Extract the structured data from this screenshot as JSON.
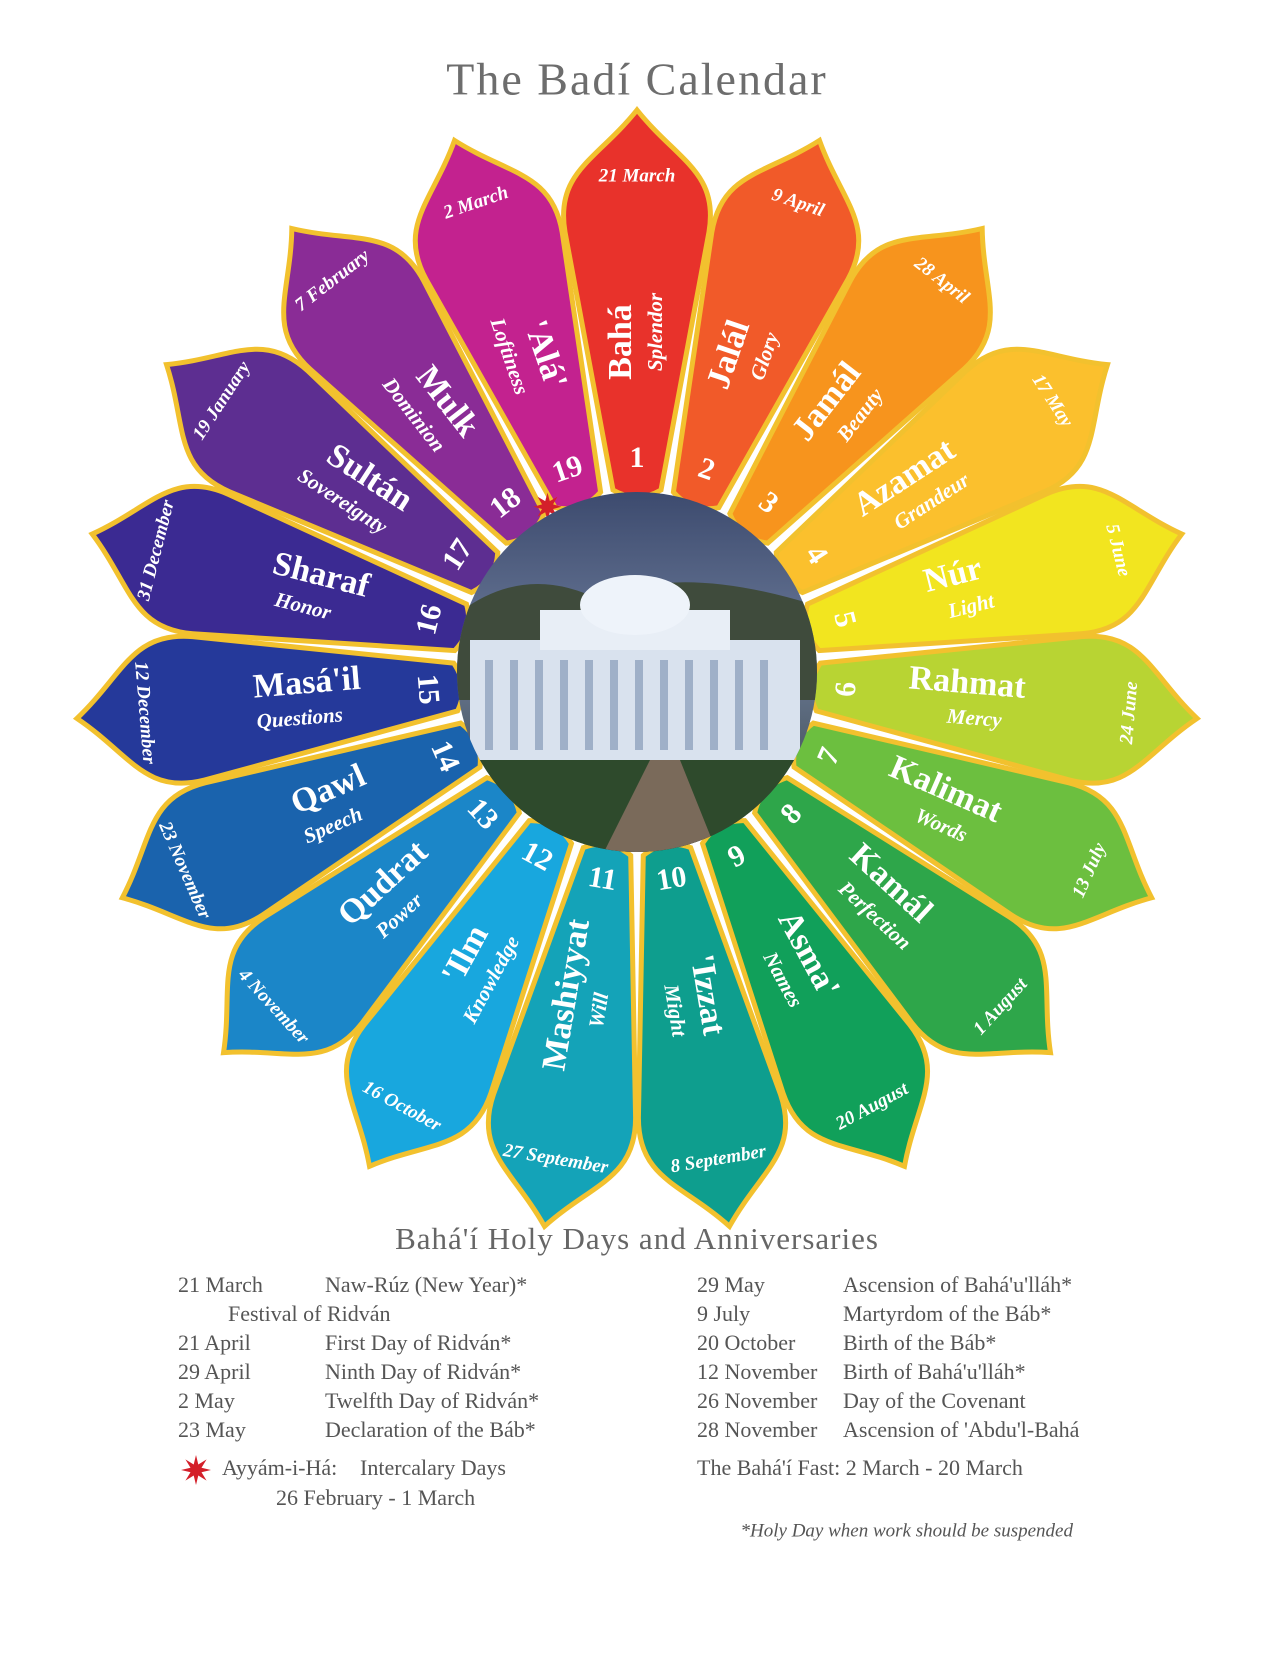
{
  "title": "The Badí Calendar",
  "months": [
    {
      "number": "1",
      "name": "Bahá",
      "meaning": "Splendor",
      "date": "21 March",
      "color": "#e8322b"
    },
    {
      "number": "2",
      "name": "Jalál",
      "meaning": "Glory",
      "date": "9 April",
      "color": "#f15a29"
    },
    {
      "number": "3",
      "name": "Jamál",
      "meaning": "Beauty",
      "date": "28 April",
      "color": "#f7941d"
    },
    {
      "number": "4",
      "name": "Azamat",
      "meaning": "Grandeur",
      "date": "17 May",
      "color": "#fbc02d"
    },
    {
      "number": "5",
      "name": "Núr",
      "meaning": "Light",
      "date": "5 June",
      "color": "#f2e51f"
    },
    {
      "number": "6",
      "name": "Rahmat",
      "meaning": "Mercy",
      "date": "24 June",
      "color": "#b8d433"
    },
    {
      "number": "7",
      "name": "Kalimat",
      "meaning": "Words",
      "date": "13 July",
      "color": "#6cbf3f"
    },
    {
      "number": "8",
      "name": "Kamál",
      "meaning": "Perfection",
      "date": "1 August",
      "color": "#2ea64a"
    },
    {
      "number": "9",
      "name": "Asma'",
      "meaning": "Names",
      "date": "20 August",
      "color": "#11a05a"
    },
    {
      "number": "10",
      "name": "'Izzat",
      "meaning": "Might",
      "date": "8 September",
      "color": "#0e9e8e"
    },
    {
      "number": "11",
      "name": "Mashiyyat",
      "meaning": "Will",
      "date": "27 September",
      "color": "#14a3b8"
    },
    {
      "number": "12",
      "name": "'Ilm",
      "meaning": "Knowledge",
      "date": "16 October",
      "color": "#18a7de"
    },
    {
      "number": "13",
      "name": "Qudrat",
      "meaning": "Power",
      "date": "4 November",
      "color": "#1b86c8"
    },
    {
      "number": "14",
      "name": "Qawl",
      "meaning": "Speech",
      "date": "23 November",
      "color": "#1a63ad"
    },
    {
      "number": "15",
      "name": "Masá'il",
      "meaning": "Questions",
      "date": "12 December",
      "color": "#25399a"
    },
    {
      "number": "16",
      "name": "Sharaf",
      "meaning": "Honor",
      "date": "31 December",
      "color": "#3b2a92"
    },
    {
      "number": "17",
      "name": "Sultán",
      "meaning": "Sovereignty",
      "date": "19 January",
      "color": "#5d2e91"
    },
    {
      "number": "18",
      "name": "Mulk",
      "meaning": "Dominion",
      "date": "7 February",
      "color": "#8a2c96"
    },
    {
      "number": "19",
      "name": "'Alá'",
      "meaning": "Loftiness",
      "date": "2 March",
      "color": "#c3228f"
    }
  ],
  "holy_days": {
    "heading": "Bahá'í Holy Days and Anniversaries",
    "left": [
      [
        "21 March",
        "Naw-Rúz (New Year)*"
      ],
      [
        "",
        "Festival of Ridván"
      ],
      [
        "21 April",
        "First Day of Ridván*"
      ],
      [
        "29 April",
        "Ninth Day of Ridván*"
      ],
      [
        "2 May",
        "Twelfth Day of Ridván*"
      ],
      [
        "23 May",
        "Declaration of the Báb*"
      ]
    ],
    "right": [
      [
        "29 May",
        "Ascension of Bahá'u'lláh*"
      ],
      [
        "9 July",
        "Martyrdom of the Báb*"
      ],
      [
        "20 October",
        "Birth of the Báb*"
      ],
      [
        "12 November",
        "Birth of Bahá'u'lláh*"
      ],
      [
        "26 November",
        "Day of the Covenant"
      ],
      [
        "28 November",
        "Ascension of 'Abdu'l-Bahá"
      ]
    ],
    "intercalary_name": "Ayyám-i-Há:",
    "intercalary_label": "Intercalary Days",
    "intercalary_dates": "26 February - 1 March",
    "fast": "The Bahá'í Fast: 2 March - 20 March",
    "footnote": "*Holy Day when work should be suspended"
  }
}
